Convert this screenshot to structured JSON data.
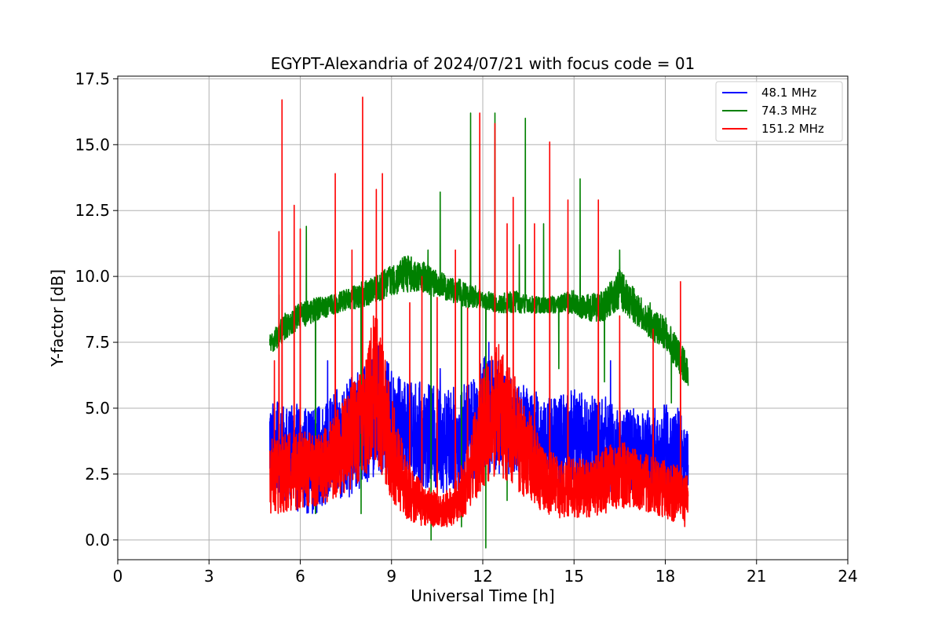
{
  "chart_data": {
    "type": "line",
    "title": "EGYPT-Alexandria of 2024/07/21 with focus code = 01",
    "xlabel": "Universal Time [h]",
    "ylabel": "Y-factor [dB]",
    "xlim": [
      0,
      24
    ],
    "ylim": [
      -0.75,
      17.6
    ],
    "xticks": [
      0,
      3,
      6,
      9,
      12,
      15,
      18,
      21,
      24
    ],
    "xtick_labels": [
      "0",
      "3",
      "6",
      "9",
      "12",
      "15",
      "18",
      "21",
      "24"
    ],
    "yticks": [
      0,
      2.5,
      5,
      7.5,
      10,
      12.5,
      15,
      17.5
    ],
    "ytick_labels": [
      "0.0",
      "2.5",
      "5.0",
      "7.5",
      "10.0",
      "12.5",
      "15.0",
      "17.5"
    ],
    "grid": true,
    "legend_position": "top-right",
    "x_range_observed": [
      5.0,
      18.75
    ],
    "series": [
      {
        "name": " 48.1 MHz",
        "color": "#0000ff",
        "envelope": {
          "x": [
            5.0,
            5.5,
            6.0,
            6.5,
            7.0,
            7.5,
            8.0,
            8.5,
            9.0,
            9.5,
            10.0,
            10.5,
            11.0,
            11.5,
            12.0,
            12.5,
            13.0,
            13.5,
            14.0,
            14.5,
            15.0,
            15.5,
            16.0,
            16.5,
            17.0,
            17.5,
            18.0,
            18.5,
            18.75
          ],
          "high": [
            5.5,
            5.0,
            5.2,
            5.0,
            5.5,
            6.0,
            6.5,
            7.5,
            6.5,
            6.0,
            6.0,
            5.8,
            5.8,
            6.0,
            7.0,
            6.8,
            6.0,
            5.8,
            5.5,
            5.5,
            5.8,
            5.5,
            5.5,
            5.0,
            5.0,
            5.0,
            5.2,
            5.0,
            4.5
          ],
          "low": [
            2.0,
            1.5,
            1.0,
            1.0,
            1.5,
            1.5,
            2.0,
            2.5,
            2.5,
            2.5,
            2.0,
            1.8,
            1.8,
            2.0,
            2.5,
            2.5,
            2.5,
            2.5,
            2.2,
            2.0,
            2.0,
            1.8,
            1.8,
            1.8,
            1.8,
            1.6,
            1.6,
            1.5,
            1.5
          ]
        },
        "spikes": [
          [
            6.9,
            6.8
          ],
          [
            10.6,
            6.5
          ],
          [
            12.2,
            7.5
          ],
          [
            16.2,
            6.8
          ]
        ]
      },
      {
        "name": " 74.3 MHz",
        "color": "#008000",
        "envelope": {
          "x": [
            5.0,
            5.5,
            6.0,
            6.5,
            7.0,
            7.5,
            8.0,
            8.5,
            9.0,
            9.5,
            10.0,
            10.5,
            11.0,
            11.5,
            12.0,
            12.5,
            13.0,
            13.5,
            14.0,
            14.5,
            15.0,
            15.5,
            16.0,
            16.5,
            17.0,
            17.5,
            18.0,
            18.5,
            18.75
          ],
          "high": [
            7.8,
            8.6,
            9.0,
            9.2,
            9.3,
            9.5,
            9.8,
            10.0,
            10.5,
            10.8,
            10.6,
            10.2,
            10.0,
            9.8,
            9.5,
            9.3,
            9.5,
            9.3,
            9.2,
            9.3,
            9.5,
            9.3,
            9.5,
            10.3,
            9.5,
            8.8,
            8.5,
            7.5,
            7.0
          ],
          "low": [
            7.0,
            7.6,
            8.0,
            8.3,
            8.5,
            8.7,
            8.8,
            9.0,
            9.3,
            9.4,
            9.4,
            9.2,
            9.0,
            8.8,
            8.8,
            8.6,
            8.6,
            8.6,
            8.6,
            8.6,
            8.5,
            8.3,
            8.3,
            8.8,
            8.2,
            7.6,
            7.2,
            6.2,
            5.8
          ]
        },
        "spikes": [
          [
            5.3,
            9.3
          ],
          [
            6.2,
            11.9
          ],
          [
            9.3,
            10.6
          ],
          [
            10.2,
            11.0
          ],
          [
            10.6,
            13.2
          ],
          [
            11.6,
            16.2
          ],
          [
            11.9,
            11.0
          ],
          [
            12.4,
            16.2
          ],
          [
            13.2,
            11.2
          ],
          [
            13.4,
            16.0
          ],
          [
            14.0,
            12.0
          ],
          [
            15.2,
            13.7
          ],
          [
            16.5,
            11.0
          ],
          [
            17.5,
            9.0
          ]
        ],
        "dips": [
          [
            6.5,
            1.0
          ],
          [
            8.0,
            1.0
          ],
          [
            10.3,
            0.0
          ],
          [
            11.3,
            0.5
          ],
          [
            12.1,
            -0.3
          ],
          [
            12.8,
            1.5
          ],
          [
            14.5,
            6.5
          ],
          [
            16.0,
            6.0
          ],
          [
            18.2,
            5.2
          ]
        ]
      },
      {
        "name": "151.2 MHz",
        "color": "#ff0000",
        "envelope": {
          "x": [
            5.0,
            5.5,
            6.0,
            6.5,
            7.0,
            7.5,
            8.0,
            8.5,
            9.0,
            9.5,
            10.0,
            10.5,
            11.0,
            11.5,
            12.0,
            12.5,
            13.0,
            13.5,
            14.0,
            14.5,
            15.0,
            15.5,
            16.0,
            16.5,
            17.0,
            17.5,
            18.0,
            18.5,
            18.75
          ],
          "high": [
            3.8,
            4.0,
            4.2,
            4.0,
            4.5,
            5.5,
            6.5,
            9.0,
            5.5,
            3.0,
            2.2,
            1.8,
            2.0,
            3.5,
            6.5,
            7.5,
            6.5,
            5.0,
            3.5,
            3.2,
            3.2,
            3.0,
            3.5,
            3.8,
            3.5,
            3.2,
            3.0,
            2.8,
            2.5
          ],
          "low": [
            1.0,
            1.0,
            1.2,
            1.2,
            1.5,
            1.8,
            2.2,
            3.0,
            1.5,
            0.8,
            0.5,
            0.5,
            0.5,
            1.0,
            2.0,
            2.5,
            2.0,
            1.5,
            1.0,
            0.8,
            0.8,
            0.8,
            1.0,
            1.2,
            1.2,
            1.0,
            0.8,
            0.6,
            0.2
          ]
        },
        "spikes": [
          [
            5.15,
            6.8
          ],
          [
            5.3,
            11.7
          ],
          [
            5.4,
            16.7
          ],
          [
            5.8,
            12.7
          ],
          [
            6.0,
            11.8
          ],
          [
            7.15,
            13.9
          ],
          [
            7.7,
            11.0
          ],
          [
            8.05,
            16.8
          ],
          [
            8.5,
            13.3
          ],
          [
            8.7,
            13.9
          ],
          [
            9.6,
            9.0
          ],
          [
            10.0,
            10.0
          ],
          [
            10.5,
            9.2
          ],
          [
            11.1,
            11.0
          ],
          [
            11.5,
            8.8
          ],
          [
            11.9,
            16.2
          ],
          [
            12.4,
            15.8
          ],
          [
            12.8,
            12.0
          ],
          [
            13.0,
            13.0
          ],
          [
            13.7,
            12.0
          ],
          [
            14.2,
            15.1
          ],
          [
            14.8,
            12.9
          ],
          [
            15.8,
            12.9
          ],
          [
            16.5,
            8.5
          ],
          [
            17.6,
            8.0
          ],
          [
            18.5,
            9.8
          ]
        ]
      }
    ]
  }
}
